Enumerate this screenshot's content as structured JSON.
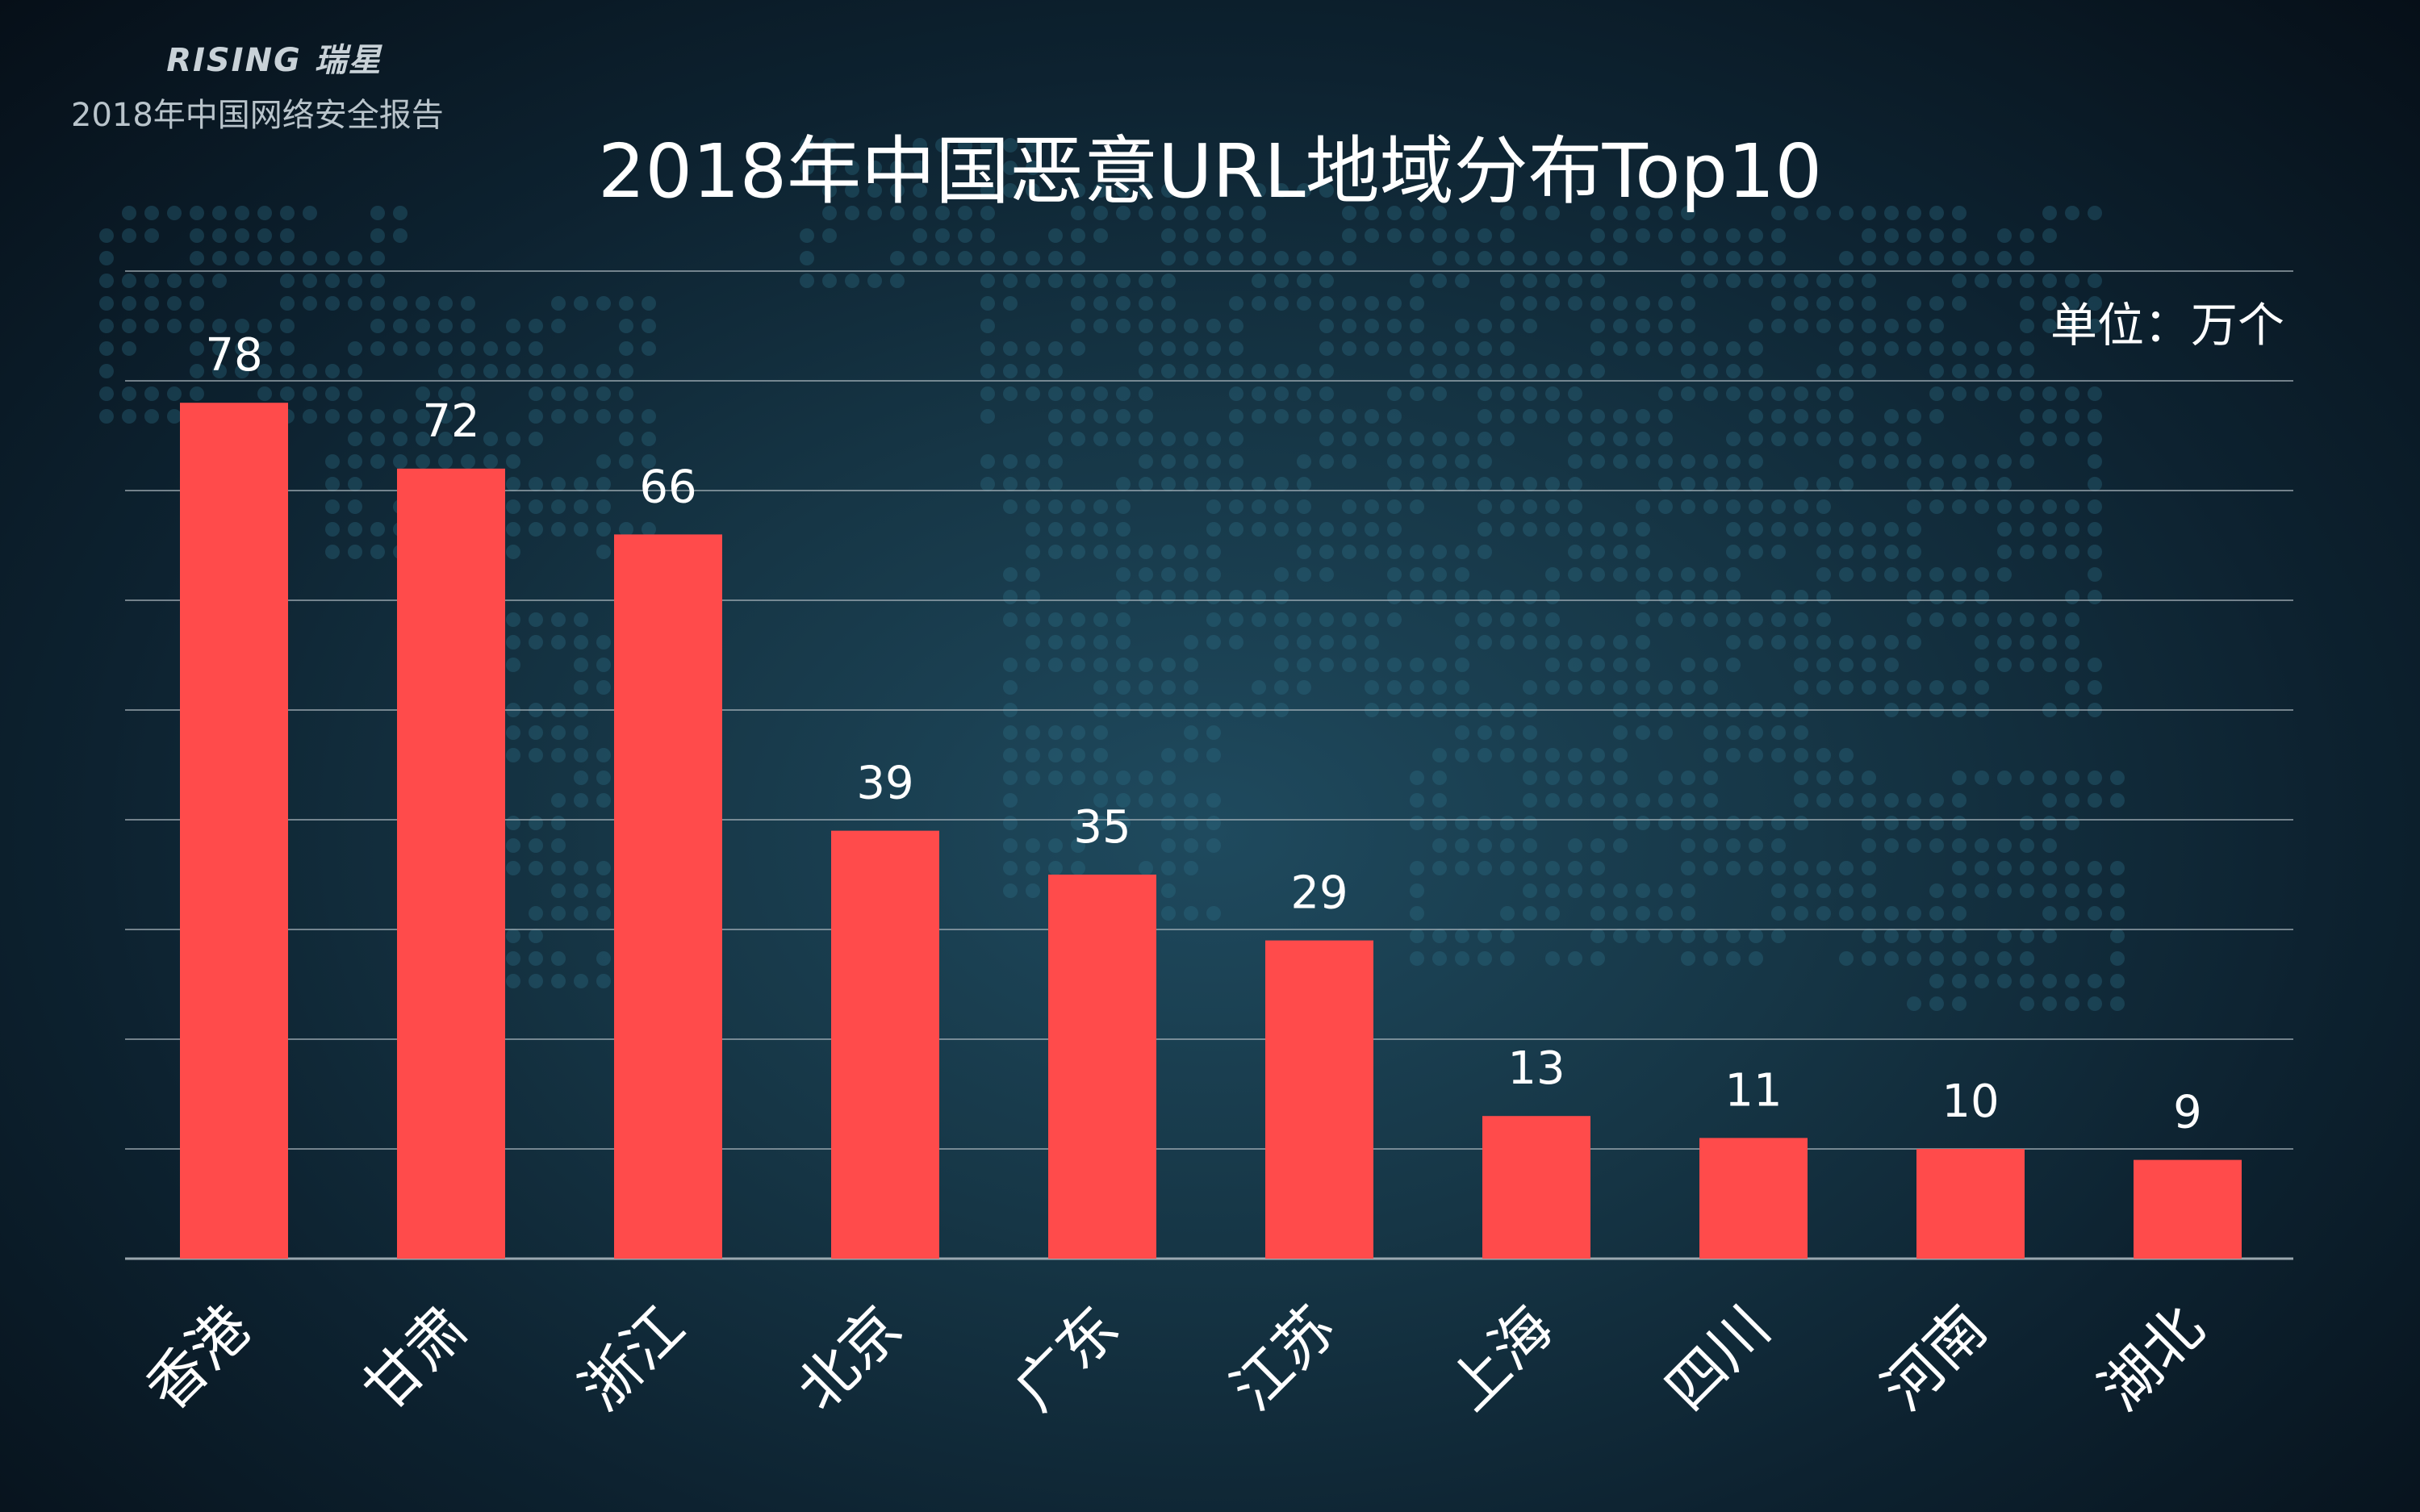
{
  "header": {
    "brand": "RISING 瑞星",
    "report": "2018年中国网络安全报告"
  },
  "colors": {
    "bar": "#ff4b4b",
    "gridline": "#aab6bd",
    "text": "#ffffff"
  },
  "chart_data": {
    "type": "bar",
    "title": "2018年中国恶意URL地域分布Top10",
    "unit": "单位：万个",
    "categories": [
      "香港",
      "甘肃",
      "浙江",
      "北京",
      "广东",
      "江苏",
      "上海",
      "四川",
      "河南",
      "湖北"
    ],
    "values": [
      78,
      72,
      66,
      39,
      35,
      29,
      13,
      11,
      10,
      9
    ],
    "ylim": [
      0,
      90
    ],
    "grid": true,
    "legend": "none"
  }
}
